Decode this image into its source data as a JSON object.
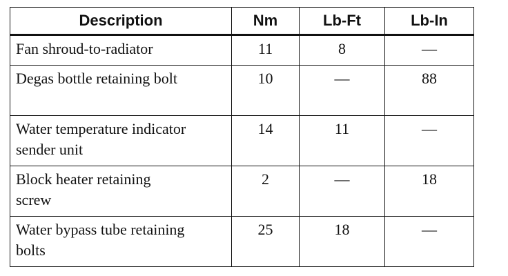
{
  "table": {
    "header": [
      "Description",
      "Nm",
      "Lb-Ft",
      "Lb-In"
    ],
    "rows": [
      [
        "Fan shroud-to-radiator",
        11,
        8,
        "—"
      ],
      [
        "Degas bottle retaining bolt",
        10,
        "—",
        88
      ],
      [
        "Water temperature indicator sender unit",
        14,
        11,
        "—"
      ],
      [
        "Block heater retaining screw",
        2,
        "—",
        18
      ],
      [
        "Water bypass tube retaining bolts",
        25,
        18,
        "—"
      ]
    ]
  }
}
